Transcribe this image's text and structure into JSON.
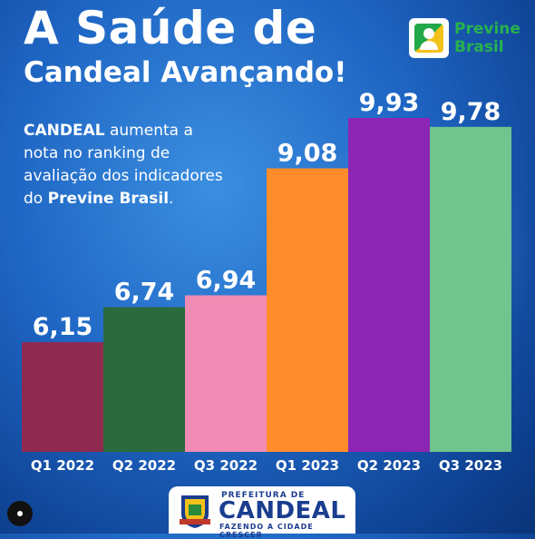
{
  "header": {
    "title_line1": "A Saúde de",
    "title_line2": "Candeal Avançando!"
  },
  "description": {
    "strong1": "CANDEAL",
    "text1": " aumenta a nota no ranking de avaliação dos indicadores do ",
    "strong2": "Previne Brasil",
    "text2": "."
  },
  "logo": {
    "line1": "Previne",
    "line2": "Brasil"
  },
  "footer": {
    "line1": "PREFEITURA DE",
    "line2": "CANDEAL",
    "line3": "FAZENDO A CIDADE CRESCER"
  },
  "colors": {
    "bar_q1_2022": "#8e2a4f",
    "bar_q2_2022": "#2a6a3c",
    "bar_q3_2022": "#f08bb4",
    "bar_q1_2023": "#ff8c2a",
    "bar_q2_2023": "#8c25b3",
    "bar_q3_2023": "#70c48e"
  },
  "chart_data": {
    "type": "bar",
    "categories": [
      "Q1 2022",
      "Q2 2022",
      "Q3 2022",
      "Q1 2023",
      "Q2 2023",
      "Q3 2023"
    ],
    "values": [
      6.15,
      6.74,
      6.94,
      9.08,
      9.93,
      9.78
    ],
    "value_labels": [
      "6,15",
      "6,74",
      "6,94",
      "9,08",
      "9,93",
      "9,78"
    ],
    "ylim": [
      4.3,
      9.93
    ],
    "grid": false,
    "legend": "none"
  }
}
